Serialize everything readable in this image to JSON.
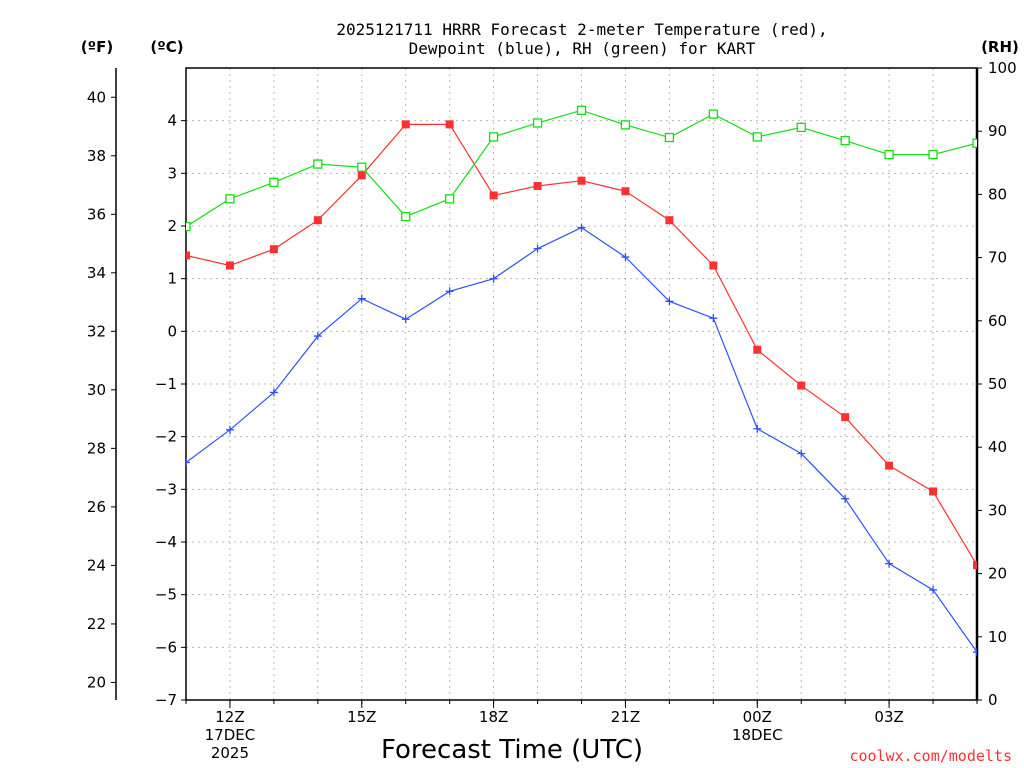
{
  "chart_data": {
    "type": "line",
    "title": [
      "2025121711 HRRR Forecast 2-meter Temperature (red),",
      "Dewpoint (blue), RH (green) for KART"
    ],
    "xlabel": "Forecast Time (UTC)",
    "credit": "coolwx.com/modelts",
    "units": {
      "fahrenheit": "(ºF)",
      "celsius": "(ºC)",
      "rh": "(RH)"
    },
    "x_hours": [
      11,
      12,
      13,
      14,
      15,
      16,
      17,
      18,
      19,
      20,
      21,
      22,
      23,
      24,
      25,
      26,
      27,
      28,
      29
    ],
    "xlim": [
      11,
      29
    ],
    "x_ticks": [
      {
        "hour": 12,
        "lines": [
          "12Z",
          "17DEC",
          "2025"
        ]
      },
      {
        "hour": 15,
        "lines": [
          "15Z"
        ]
      },
      {
        "hour": 18,
        "lines": [
          "18Z"
        ]
      },
      {
        "hour": 21,
        "lines": [
          "21Z"
        ]
      },
      {
        "hour": 24,
        "lines": [
          "00Z",
          "18DEC"
        ]
      },
      {
        "hour": 27,
        "lines": [
          "03Z"
        ]
      }
    ],
    "axes": {
      "celsius": {
        "range": [
          -7,
          5
        ],
        "ticks": [
          -7,
          -6,
          -5,
          -4,
          -3,
          -2,
          -1,
          0,
          1,
          2,
          3,
          4
        ]
      },
      "fahrenheit": {
        "range": [
          19.4,
          41
        ],
        "ticks": [
          20,
          22,
          24,
          26,
          28,
          30,
          32,
          34,
          36,
          38,
          40
        ]
      },
      "rh": {
        "range": [
          0,
          100
        ],
        "ticks": [
          0,
          10,
          20,
          30,
          40,
          50,
          60,
          70,
          80,
          90,
          100
        ]
      }
    },
    "series": [
      {
        "name": "Temperature",
        "color": "#ff3030",
        "marker": "filled-square",
        "axis": "celsius",
        "values": [
          1.44,
          1.25,
          1.56,
          2.11,
          2.96,
          3.93,
          3.93,
          2.58,
          2.76,
          2.86,
          2.66,
          2.11,
          1.25,
          -0.35,
          -1.03,
          -1.63,
          -2.55,
          -3.04,
          -4.44
        ]
      },
      {
        "name": "Dewpoint",
        "color": "#3050ff",
        "marker": "plus",
        "axis": "celsius",
        "values": [
          -2.49,
          -1.87,
          -1.16,
          -0.09,
          0.62,
          0.23,
          0.76,
          1.0,
          1.57,
          1.97,
          1.41,
          0.57,
          0.25,
          -1.85,
          -2.32,
          -3.18,
          -4.41,
          -4.91,
          -6.09
        ]
      },
      {
        "name": "RH",
        "color": "#10e010",
        "marker": "open-square",
        "axis": "rh",
        "values": [
          74.9,
          79.3,
          81.9,
          84.8,
          84.3,
          76.5,
          79.3,
          89.1,
          91.3,
          93.3,
          91.0,
          89.0,
          92.7,
          89.1,
          90.6,
          88.5,
          86.3,
          86.3,
          88.1
        ]
      }
    ]
  }
}
